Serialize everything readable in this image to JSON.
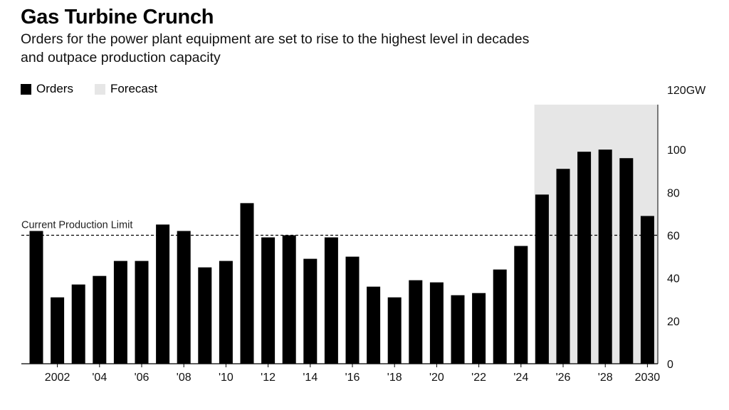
{
  "title": "Gas Turbine Crunch",
  "subtitle": "Orders for the power plant equipment are set to rise to the highest level in decades and outpace production capacity",
  "legend": {
    "orders_label": "Orders",
    "forecast_label": "Forecast"
  },
  "colors": {
    "bars": "#000000",
    "forecast_shade": "#e6e6e6",
    "reference_line": "#000000"
  },
  "chart_data": {
    "type": "bar",
    "categories": [
      2001,
      2002,
      2003,
      2004,
      2005,
      2006,
      2007,
      2008,
      2009,
      2010,
      2011,
      2012,
      2013,
      2014,
      2015,
      2016,
      2017,
      2018,
      2019,
      2020,
      2021,
      2022,
      2023,
      2024,
      2025,
      2026,
      2027,
      2028,
      2029,
      2030
    ],
    "series": [
      {
        "name": "Orders",
        "values": [
          62,
          31,
          37,
          41,
          48,
          48,
          65,
          62,
          45,
          48,
          75,
          59,
          60,
          49,
          59,
          50,
          36,
          31,
          39,
          38,
          32,
          33,
          44,
          55,
          79,
          91,
          99,
          100,
          96,
          69
        ]
      }
    ],
    "forecast_range": [
      2025,
      2030
    ],
    "reference_line": {
      "label": "Current Production Limit",
      "value": 60
    },
    "ylim": [
      0,
      120
    ],
    "y_axis_position": "right",
    "y_ticks": [
      {
        "value": 0,
        "label": "0"
      },
      {
        "value": 20,
        "label": "20"
      },
      {
        "value": 40,
        "label": "40"
      },
      {
        "value": 60,
        "label": "60"
      },
      {
        "value": 80,
        "label": "80"
      },
      {
        "value": 100,
        "label": "100"
      },
      {
        "value": 120,
        "label": "120GW"
      }
    ],
    "x_ticks": [
      {
        "value": 2002,
        "label": "2002"
      },
      {
        "value": 2004,
        "label": "'04"
      },
      {
        "value": 2006,
        "label": "'06"
      },
      {
        "value": 2008,
        "label": "'08"
      },
      {
        "value": 2010,
        "label": "'10"
      },
      {
        "value": 2012,
        "label": "'12"
      },
      {
        "value": 2014,
        "label": "'14"
      },
      {
        "value": 2016,
        "label": "'16"
      },
      {
        "value": 2018,
        "label": "'18"
      },
      {
        "value": 2020,
        "label": "'20"
      },
      {
        "value": 2022,
        "label": "'22"
      },
      {
        "value": 2024,
        "label": "'24"
      },
      {
        "value": 2026,
        "label": "'26"
      },
      {
        "value": 2028,
        "label": "'28"
      },
      {
        "value": 2030,
        "label": "2030"
      }
    ],
    "grid": false,
    "legend_position": "top-left"
  }
}
